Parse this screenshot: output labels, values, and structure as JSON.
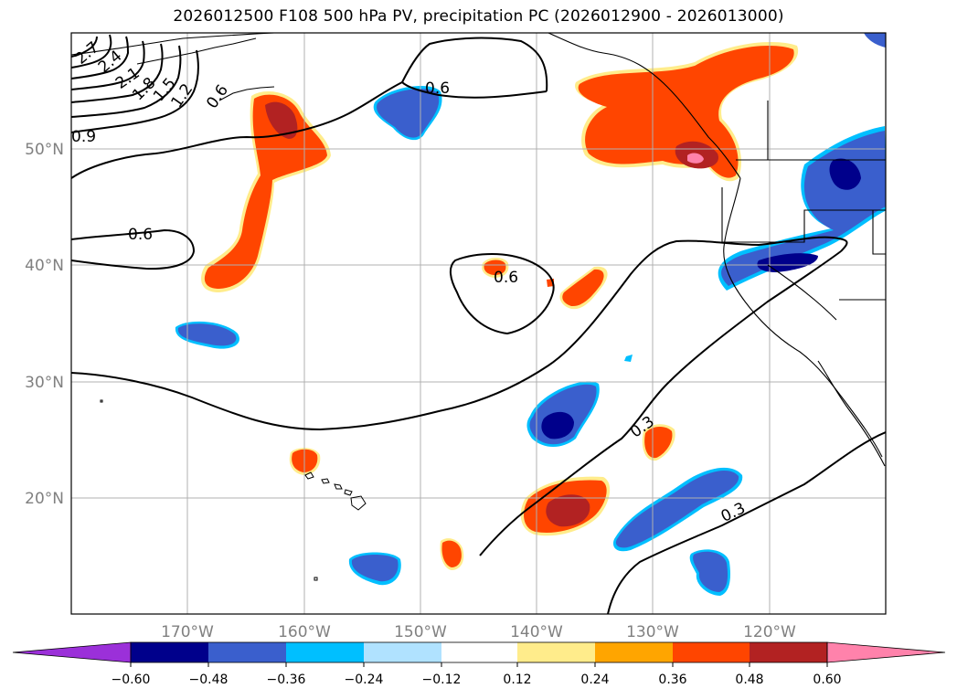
{
  "title": "2026012500 F108 500 hPa PV, precipitation PC (2026012900 - 2026013000)",
  "map": {
    "lon_ticks": [
      "170°W",
      "160°W",
      "150°W",
      "140°W",
      "130°W",
      "120°W"
    ],
    "lat_ticks": [
      "20°N",
      "30°N",
      "40°N",
      "50°N"
    ],
    "extent": {
      "lon": [
        -180,
        -110
      ],
      "lat": [
        10,
        60
      ]
    }
  },
  "contour_labels": [
    "2.7",
    "2.4",
    "2.1",
    "1.8",
    "1.5",
    "1.2",
    "0.9",
    "0.6",
    "0.6",
    "0.6",
    "0.6",
    "0.3",
    "0.3"
  ],
  "colorbar": {
    "ticks": [
      "−0.60",
      "−0.48",
      "−0.36",
      "−0.24",
      "−0.12",
      "0.12",
      "0.24",
      "0.36",
      "0.48",
      "0.60"
    ],
    "colors": [
      "#9b30d9",
      "#00008b",
      "#3a5fcd",
      "#00bfff",
      "#b0e2ff",
      "#ffffff",
      "#ffec8b",
      "#ffa500",
      "#ff4500",
      "#b22222",
      "#ff82ab"
    ]
  }
}
